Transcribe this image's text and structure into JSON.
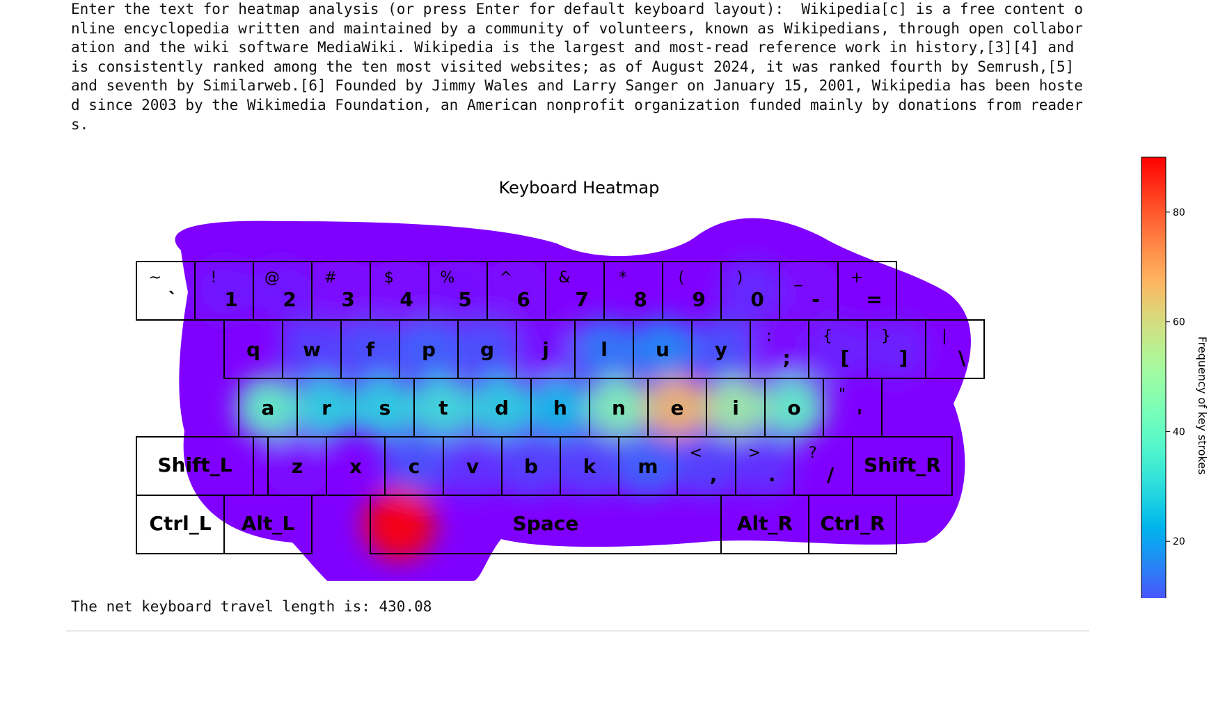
{
  "prompt": {
    "label": "Enter the text for heatmap analysis (or press Enter for default keyboard layout):",
    "input": "Wikipedia[c] is a free content online encyclopedia written and maintained by a community of volunteers, known as Wikipedians, through open collaboration and the wiki software MediaWiki. Wikipedia is the largest and most-read reference work in history,[3][4] and is consistently ranked among the ten most visited websites; as of August 2024, it was ranked fourth by Semrush,[5] and seventh by Similarweb.[6] Founded by Jimmy Wales and Larry Sanger on January 15, 2001, Wikipedia has been hosted since 2003 by the Wikimedia Foundation, an American nonprofit organization funded mainly by donations from readers."
  },
  "output": {
    "travel_text": "The net keyboard travel length is: 430.08"
  },
  "chart_data": {
    "type": "heatmap",
    "title": "Keyboard Heatmap",
    "colorbar": {
      "label": "Frequency of key strokes",
      "range": [
        0,
        90
      ],
      "ticks": [
        0,
        20,
        40,
        60,
        80
      ],
      "colormap": "rainbow"
    },
    "keys": [
      {
        "label": "`",
        "shift": "~",
        "freq": 0
      },
      {
        "label": "1",
        "shift": "!",
        "freq": 3
      },
      {
        "label": "2",
        "shift": "@",
        "freq": 3
      },
      {
        "label": "3",
        "shift": "#",
        "freq": 1
      },
      {
        "label": "4",
        "shift": "$",
        "freq": 1
      },
      {
        "label": "5",
        "shift": "%",
        "freq": 2
      },
      {
        "label": "6",
        "shift": "^",
        "freq": 1
      },
      {
        "label": "7",
        "shift": "&",
        "freq": 0
      },
      {
        "label": "8",
        "shift": "*",
        "freq": 0
      },
      {
        "label": "9",
        "shift": "(",
        "freq": 0
      },
      {
        "label": "0",
        "shift": ")",
        "freq": 5
      },
      {
        "label": "-",
        "shift": "_",
        "freq": 1
      },
      {
        "label": "=",
        "shift": "+",
        "freq": 0
      },
      {
        "label": "q",
        "shift": "",
        "freq": 0
      },
      {
        "label": "w",
        "shift": "",
        "freq": 8
      },
      {
        "label": "f",
        "shift": "",
        "freq": 10
      },
      {
        "label": "p",
        "shift": "",
        "freq": 12
      },
      {
        "label": "g",
        "shift": "",
        "freq": 10
      },
      {
        "label": "j",
        "shift": "",
        "freq": 2
      },
      {
        "label": "l",
        "shift": "",
        "freq": 15
      },
      {
        "label": "u",
        "shift": "",
        "freq": 17
      },
      {
        "label": "y",
        "shift": "",
        "freq": 10
      },
      {
        "label": ";",
        "shift": ":",
        "freq": 1
      },
      {
        "label": "[",
        "shift": "{",
        "freq": 4
      },
      {
        "label": "]",
        "shift": "}",
        "freq": 4
      },
      {
        "label": "\\",
        "shift": "|",
        "freq": 0
      },
      {
        "label": "a",
        "shift": "",
        "freq": 40
      },
      {
        "label": "r",
        "shift": "",
        "freq": 30
      },
      {
        "label": "s",
        "shift": "",
        "freq": 30
      },
      {
        "label": "t",
        "shift": "",
        "freq": 33
      },
      {
        "label": "d",
        "shift": "",
        "freq": 30
      },
      {
        "label": "h",
        "shift": "",
        "freq": 25
      },
      {
        "label": "n",
        "shift": "",
        "freq": 45
      },
      {
        "label": "e",
        "shift": "",
        "freq": 65
      },
      {
        "label": "i",
        "shift": "",
        "freq": 50
      },
      {
        "label": "o",
        "shift": "",
        "freq": 40
      },
      {
        "label": "'",
        "shift": "\"",
        "freq": 0
      },
      {
        "label": "z",
        "shift": "",
        "freq": 1
      },
      {
        "label": "x",
        "shift": "",
        "freq": 0
      },
      {
        "label": "c",
        "shift": "",
        "freq": 10
      },
      {
        "label": "v",
        "shift": "",
        "freq": 6
      },
      {
        "label": "b",
        "shift": "",
        "freq": 8
      },
      {
        "label": "k",
        "shift": "",
        "freq": 8
      },
      {
        "label": "m",
        "shift": "",
        "freq": 12
      },
      {
        "label": ",",
        "shift": "<",
        "freq": 8
      },
      {
        "label": ".",
        "shift": ">",
        "freq": 6
      },
      {
        "label": "/",
        "shift": "?",
        "freq": 0
      },
      {
        "label": "Shift_L",
        "shift": "",
        "freq": 0
      },
      {
        "label": "Shift_R",
        "shift": "",
        "freq": 0
      },
      {
        "label": "Ctrl_L",
        "shift": "",
        "freq": 0
      },
      {
        "label": "Alt_L",
        "shift": "",
        "freq": 0
      },
      {
        "label": "Space",
        "shift": "",
        "freq": 90
      },
      {
        "label": "Alt_R",
        "shift": "",
        "freq": 0
      },
      {
        "label": "Ctrl_R",
        "shift": "",
        "freq": 0
      }
    ]
  }
}
